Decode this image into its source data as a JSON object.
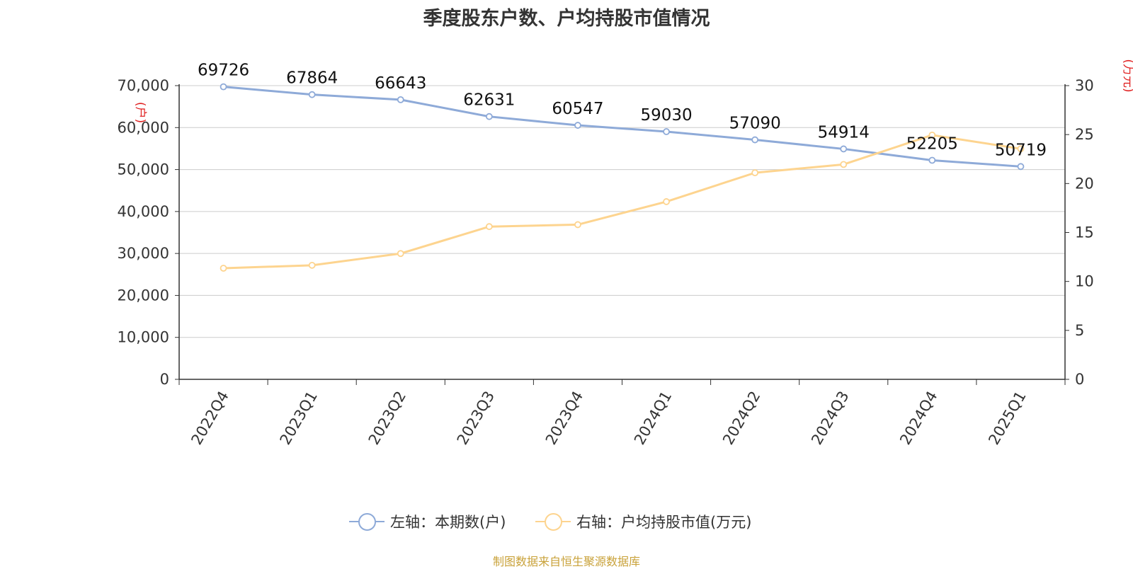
{
  "title": "季度股东户数、户均持股市值情况",
  "source": "制图数据来自恒生聚源数据库",
  "legend": {
    "left": "左轴：本期数(户)",
    "right": "右轴：户均持股市值(万元)"
  },
  "colors": {
    "left": "#8eaad8",
    "right": "#fdd48f",
    "axis_unit": "#e02020"
  },
  "chart_data": {
    "type": "line",
    "title": "季度股东户数、户均持股市值情况",
    "categories": [
      "2022Q4",
      "2023Q1",
      "2023Q2",
      "2023Q3",
      "2023Q4",
      "2024Q1",
      "2024Q2",
      "2024Q3",
      "2024Q4",
      "2025Q1"
    ],
    "y_left": {
      "unit": "(户)",
      "range": [
        0,
        70000
      ],
      "ticks": [
        0,
        10000,
        20000,
        30000,
        40000,
        50000,
        60000,
        70000
      ],
      "tick_labels": [
        "0",
        "10,000",
        "20,000",
        "30,000",
        "40,000",
        "50,000",
        "60,000",
        "70,000"
      ]
    },
    "y_right": {
      "unit": "(万元)",
      "range": [
        0,
        30
      ],
      "ticks": [
        0,
        5,
        10,
        15,
        20,
        25,
        30
      ],
      "tick_labels": [
        "0",
        "5",
        "10",
        "15",
        "20",
        "25",
        "30"
      ]
    },
    "series": [
      {
        "name": "左轴：本期数(户)",
        "axis": "left",
        "values": [
          69726,
          67864,
          66643,
          62631,
          60547,
          59030,
          57090,
          54914,
          52205,
          50719
        ],
        "labels": [
          "69726",
          "67864",
          "66643",
          "62631",
          "60547",
          "59030",
          "57090",
          "54914",
          "52205",
          "50719"
        ]
      },
      {
        "name": "右轴：户均持股市值(万元)",
        "axis": "right",
        "values": [
          11.35,
          11.65,
          12.85,
          15.6,
          15.8,
          18.15,
          21.1,
          21.95,
          24.95,
          23.55
        ]
      }
    ],
    "grid": true,
    "legend_position": "bottom"
  }
}
